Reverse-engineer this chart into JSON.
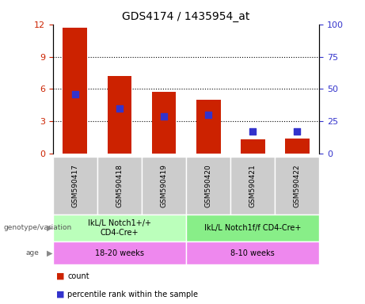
{
  "title": "GDS4174 / 1435954_at",
  "samples": [
    "GSM590417",
    "GSM590418",
    "GSM590419",
    "GSM590420",
    "GSM590421",
    "GSM590422"
  ],
  "bar_heights": [
    11.7,
    7.2,
    5.7,
    5.0,
    1.3,
    1.4
  ],
  "percentile_ranks": [
    46.0,
    35.0,
    29.0,
    30.0,
    17.0,
    17.0
  ],
  "ylim_left": [
    0,
    12
  ],
  "ylim_right": [
    0,
    100
  ],
  "yticks_left": [
    0,
    3,
    6,
    9,
    12
  ],
  "yticks_right": [
    0,
    25,
    50,
    75,
    100
  ],
  "bar_color": "#cc2200",
  "square_color": "#3333cc",
  "grid_color": "#000000",
  "group1_label": "IkL/L Notch1+/+\nCD4-Cre+",
  "group2_label": "IkL/L Notch1f/f CD4-Cre+",
  "age1_label": "18-20 weeks",
  "age2_label": "8-10 weeks",
  "genotype_label": "genotype/variation",
  "age_row_label": "age",
  "legend_count": "count",
  "legend_percentile": "percentile rank within the sample",
  "group1_color": "#bbffbb",
  "group2_color": "#88ee88",
  "age_color": "#ee88ee",
  "tick_bg_color": "#cccccc",
  "bar_width": 0.55,
  "title_fontsize": 10,
  "label_fontsize": 7,
  "sample_fontsize": 6.5,
  "anno_fontsize": 7
}
